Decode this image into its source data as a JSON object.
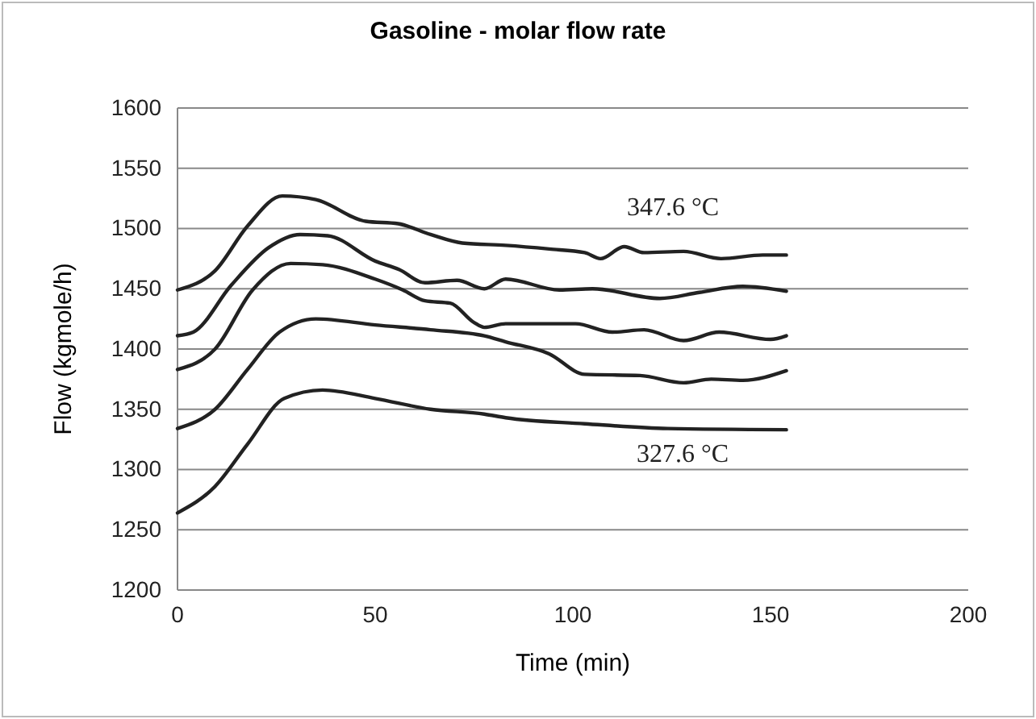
{
  "chart_data": {
    "type": "line",
    "title": "Gasoline - molar flow rate",
    "xlabel": "Time (min)",
    "ylabel": "Flow (kgmole/h)",
    "xlim": [
      0,
      200
    ],
    "xticks": [
      0,
      50,
      100,
      150,
      200
    ],
    "ylim": [
      1200,
      1600
    ],
    "yticks": [
      1200,
      1250,
      1300,
      1350,
      1400,
      1450,
      1500,
      1550,
      1600
    ],
    "grid": "y",
    "annotations": [
      "347.6 °C",
      "327.6 °C"
    ],
    "series": [
      {
        "color": "#222222",
        "x": [
          0,
          9.5,
          17.7,
          26.5,
          35,
          47.6,
          55.8,
          64,
          72,
          83,
          94,
          103,
          107,
          113,
          118,
          128,
          137.5,
          148,
          154
        ],
        "values": [
          1449,
          1465,
          1502,
          1527,
          1524,
          1506,
          1504,
          1495,
          1488,
          1486,
          1483,
          1480,
          1475,
          1485,
          1480,
          1481,
          1475,
          1478,
          1478
        ]
      },
      {
        "color": "#222222",
        "x": [
          0,
          4,
          13.6,
          23,
          31,
          38,
          50,
          56,
          62.6,
          70.7,
          77.6,
          83,
          96.6,
          105,
          122,
          132,
          143,
          154
        ],
        "values": [
          1411,
          1414,
          1453,
          1484,
          1495,
          1494,
          1473,
          1466,
          1455,
          1457,
          1450,
          1458,
          1449,
          1450,
          1442,
          1447,
          1452,
          1448
        ]
      },
      {
        "color": "#222222",
        "x": [
          0,
          9.5,
          19,
          28.6,
          36.7,
          50,
          57,
          62.6,
          69,
          75,
          77.6,
          83,
          100.7,
          110,
          118,
          128,
          137,
          150,
          154
        ],
        "values": [
          1383,
          1400,
          1449,
          1471,
          1470,
          1458,
          1449,
          1440,
          1438,
          1422,
          1418,
          1421,
          1421,
          1414,
          1416,
          1407,
          1414,
          1408,
          1411
        ]
      },
      {
        "color": "#222222",
        "x": [
          0,
          9.5,
          17.7,
          25.8,
          35,
          50,
          64,
          77.6,
          83,
          94,
          103,
          117,
          128,
          135,
          143,
          154
        ],
        "values": [
          1334,
          1350,
          1383,
          1414,
          1425,
          1420,
          1416,
          1411,
          1406,
          1396,
          1379,
          1378,
          1372,
          1375,
          1374,
          1382
        ]
      },
      {
        "color": "#222222",
        "x": [
          0,
          9.5,
          17.7,
          27,
          36.7,
          50,
          64,
          77.6,
          83,
          103,
          124,
          154
        ],
        "values": [
          1264,
          1286,
          1321,
          1359,
          1366,
          1359,
          1350,
          1346,
          1343,
          1338,
          1334,
          1333
        ]
      }
    ]
  }
}
